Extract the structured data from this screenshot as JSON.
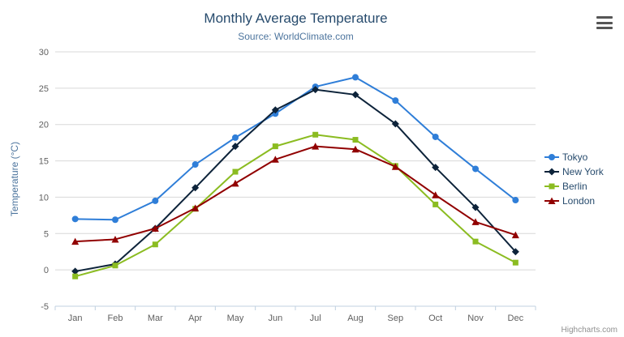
{
  "chart": {
    "title": "Monthly Average Temperature",
    "subtitle": "Source: WorldClimate.com",
    "credits": "Highcharts.com"
  },
  "chart_data": {
    "type": "line",
    "title": "Monthly Average Temperature",
    "subtitle": "Source: WorldClimate.com",
    "categories": [
      "Jan",
      "Feb",
      "Mar",
      "Apr",
      "May",
      "Jun",
      "Jul",
      "Aug",
      "Sep",
      "Oct",
      "Nov",
      "Dec"
    ],
    "xlabel": "",
    "ylabel": "Temperature (°C)",
    "ylim": [
      -5,
      30
    ],
    "ytick_interval": 5,
    "grid": true,
    "legend_position": "right",
    "series": [
      {
        "name": "Tokyo",
        "color": "#2f7ed8",
        "marker": "circle",
        "values": [
          7.0,
          6.9,
          9.5,
          14.5,
          18.2,
          21.5,
          25.2,
          26.5,
          23.3,
          18.3,
          13.9,
          9.6
        ]
      },
      {
        "name": "New York",
        "color": "#0d233a",
        "marker": "diamond",
        "values": [
          -0.2,
          0.8,
          5.7,
          11.3,
          17.0,
          22.0,
          24.8,
          24.1,
          20.1,
          14.1,
          8.6,
          2.5
        ]
      },
      {
        "name": "Berlin",
        "color": "#8bbc21",
        "marker": "square",
        "values": [
          -0.9,
          0.6,
          3.5,
          8.4,
          13.5,
          17.0,
          18.6,
          17.9,
          14.3,
          9.0,
          3.9,
          1.0
        ]
      },
      {
        "name": "London",
        "color": "#910000",
        "marker": "triangle",
        "values": [
          3.9,
          4.2,
          5.7,
          8.5,
          11.9,
          15.2,
          17.0,
          16.6,
          14.2,
          10.3,
          6.6,
          4.8
        ]
      }
    ]
  }
}
